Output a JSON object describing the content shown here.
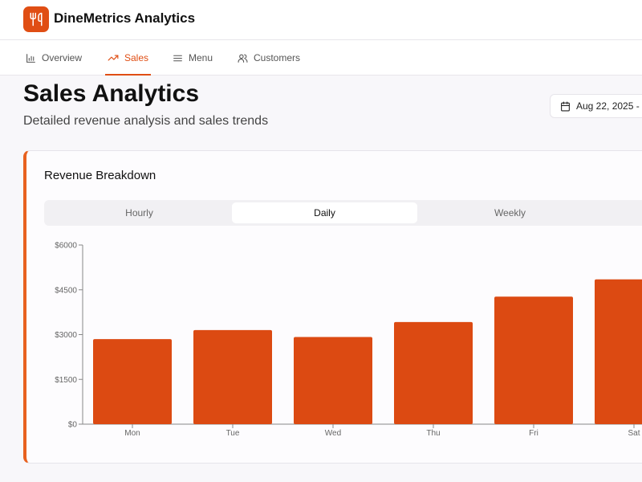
{
  "app": {
    "title": "DineMetrics Analytics",
    "logo_icon": "utensils-icon"
  },
  "nav": {
    "tabs": [
      {
        "label": "Overview",
        "icon": "bar-chart-icon",
        "active": false
      },
      {
        "label": "Sales",
        "icon": "trending-up-icon",
        "active": true
      },
      {
        "label": "Menu",
        "icon": "menu-lines-icon",
        "active": false
      },
      {
        "label": "Customers",
        "icon": "users-icon",
        "active": false
      }
    ]
  },
  "page": {
    "title": "Sales Analytics",
    "subtitle": "Detailed revenue analysis and sales trends",
    "date_range": "Aug 22, 2025 -"
  },
  "card": {
    "title": "Revenue Breakdown",
    "periods": [
      "Hourly",
      "Daily",
      "Weekly"
    ],
    "selected_period": "Daily"
  },
  "colors": {
    "accent": "#e04e14",
    "bar": "#dc4a12"
  },
  "chart_data": {
    "type": "bar",
    "categories": [
      "Mon",
      "Tue",
      "Wed",
      "Thu",
      "Fri",
      "Sat"
    ],
    "values": [
      2850,
      3150,
      2920,
      3420,
      4270,
      4850
    ],
    "ylim": [
      0,
      6000
    ],
    "yticks": [
      0,
      1500,
      3000,
      4500,
      6000
    ],
    "ytick_labels": [
      "$0",
      "$1500",
      "$3000",
      "$4500",
      "$6000"
    ],
    "grid": false
  }
}
